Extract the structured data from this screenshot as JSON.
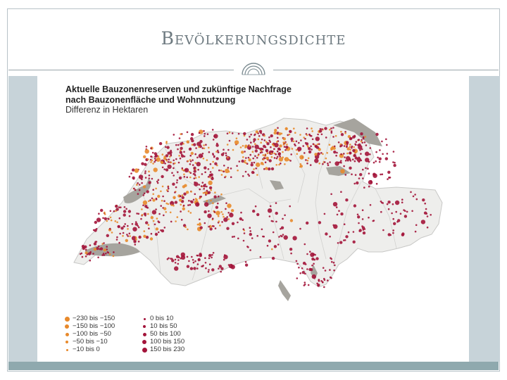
{
  "slide": {
    "title": "Bevölkerungsdichte"
  },
  "map": {
    "heading_line1": "Aktuelle Bauzonenreserven und zukünftige Nachfrage",
    "heading_line2": "nach Bauzonenfläche und Wohnnutzung",
    "heading_line3": "Differenz in Hektaren",
    "colors": {
      "orange": "#e8892b",
      "red": "#a3143a",
      "lake": "#a6a49e",
      "land": "#eeeeec",
      "border": "#c8c8c6"
    },
    "legend_left": [
      {
        "label": "−230 bis −150",
        "color": "#e8892b",
        "size": 7
      },
      {
        "label": "−150 bis −100",
        "color": "#e8892b",
        "size": 6
      },
      {
        "label": "−100 bis −50",
        "color": "#e8892b",
        "size": 5
      },
      {
        "label": "−50 bis −10",
        "color": "#e8892b",
        "size": 4
      },
      {
        "label": "−10 bis 0",
        "color": "#e8892b",
        "size": 3
      }
    ],
    "legend_right": [
      {
        "label": "0 bis 10",
        "color": "#a3143a",
        "size": 3
      },
      {
        "label": "10 bis 50",
        "color": "#a3143a",
        "size": 4
      },
      {
        "label": "50 bis 100",
        "color": "#a3143a",
        "size": 5
      },
      {
        "label": "100 bis 150",
        "color": "#a3143a",
        "size": 6
      },
      {
        "label": "150 bis 230",
        "color": "#a3143a",
        "size": 7
      }
    ]
  }
}
